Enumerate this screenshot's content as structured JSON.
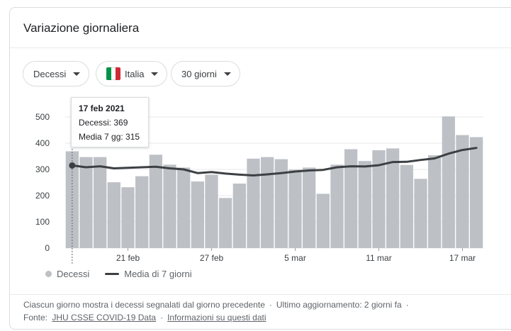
{
  "card": {
    "title": "Variazione giornaliera"
  },
  "filters": {
    "metric": "Decessi",
    "country": "Italia",
    "country_flag_colors": [
      "#009246",
      "#ffffff",
      "#ce2b37"
    ],
    "period": "30 giorni"
  },
  "tooltip": {
    "date": "17 feb 2021",
    "value_line": "Decessi: 369",
    "avg_line": "Media 7 gg: 315"
  },
  "legend": {
    "bars_label": "Decessi",
    "line_label": "Media di 7 giorni"
  },
  "footer": {
    "line1_text": "Ciascun giorno mostra i decessi segnalati dal giorno precedente",
    "line1_update": "Ultimo aggiornamento: 2 giorni fa",
    "source_prefix": "Fonte:",
    "source_link": "JHU CSSE COVID-19 Data",
    "info_link": "Informazioni su questi dati"
  },
  "colors": {
    "bar": "#bdc1c6",
    "line": "#3c4043",
    "grid": "#e8eaed",
    "axis_text": "#3c4043"
  },
  "chart_data": {
    "type": "bar",
    "xlabel": "",
    "ylabel": "",
    "ylim": [
      0,
      500
    ],
    "yticks": [
      0,
      100,
      200,
      300,
      400,
      500
    ],
    "grid": true,
    "legend_position": "bottom-left",
    "x_tick_labels": [
      "21 feb",
      "27 feb",
      "5 mar",
      "11 mar",
      "17 mar"
    ],
    "x_tick_positions": [
      "21 feb",
      "27 feb",
      "5 mar",
      "11 mar",
      "17 mar"
    ],
    "categories": [
      "17 feb",
      "18 feb",
      "19 feb",
      "20 feb",
      "21 feb",
      "22 feb",
      "23 feb",
      "24 feb",
      "25 feb",
      "26 feb",
      "27 feb",
      "28 feb",
      "1 mar",
      "2 mar",
      "3 mar",
      "4 mar",
      "5 mar",
      "6 mar",
      "7 mar",
      "8 mar",
      "9 mar",
      "10 mar",
      "11 mar",
      "12 mar",
      "13 mar",
      "14 mar",
      "15 mar",
      "16 mar",
      "17 mar",
      "18 mar"
    ],
    "highlight_index": 0,
    "series": [
      {
        "name": "Decessi",
        "type": "bar",
        "values": [
          369,
          347,
          347,
          251,
          232,
          274,
          356,
          318,
          307,
          254,
          280,
          191,
          246,
          341,
          347,
          339,
          299,
          307,
          207,
          318,
          377,
          332,
          373,
          380,
          317,
          264,
          354,
          502,
          431,
          423
        ]
      },
      {
        "name": "Media di 7 giorni",
        "type": "line",
        "values": [
          315,
          308,
          312,
          304,
          306,
          308,
          310,
          304,
          300,
          286,
          290,
          284,
          280,
          277,
          281,
          286,
          292,
          296,
          298,
          308,
          312,
          311,
          316,
          328,
          329,
          336,
          342,
          360,
          374,
          382
        ]
      }
    ]
  }
}
